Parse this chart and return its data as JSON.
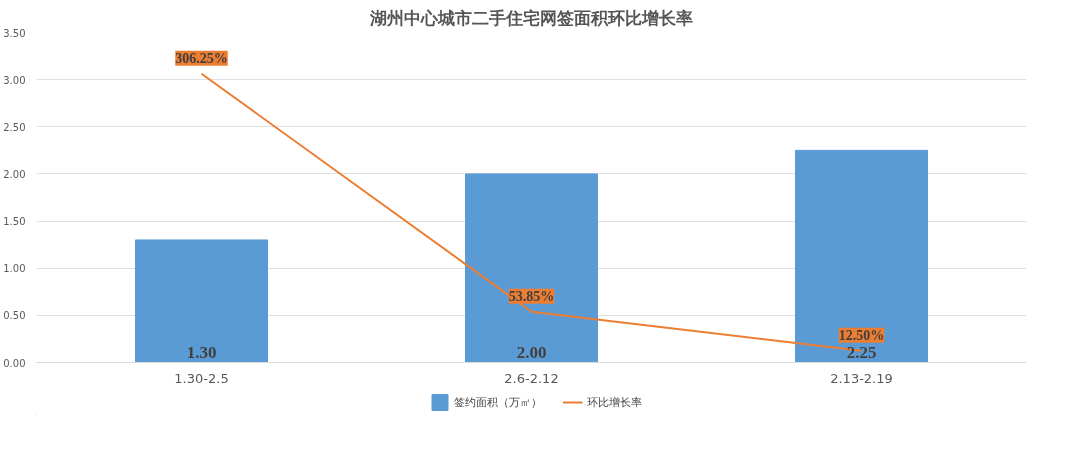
{
  "chart_data": {
    "type": "bar",
    "title": "湖州中心城市二手住宅网签面积环比增长率",
    "categories": [
      "1.30-2.5",
      "2.6-2.12",
      "2.13-2.19"
    ],
    "series": [
      {
        "name": "签约面积（万㎡）",
        "color": "#5b9bd5",
        "values": [
          1.3,
          2.0,
          2.25
        ],
        "value_labels": [
          "1.30",
          "2.00",
          "2.25"
        ]
      },
      {
        "name": "环比增长率",
        "type": "line",
        "color": "#ed7d31",
        "values": [
          3.0625,
          0.5385,
          0.125
        ],
        "value_labels": [
          "306.25%",
          "53.85%",
          "12.50%"
        ]
      }
    ],
    "ylim": [
      0,
      3.5
    ],
    "yticks": [
      {
        "value": 0,
        "label": "0.00"
      },
      {
        "value": 0.5,
        "label": "0.50"
      },
      {
        "value": 1,
        "label": "1.00"
      },
      {
        "value": 1.5,
        "label": "1.50"
      },
      {
        "value": 2,
        "label": "2.00"
      },
      {
        "value": 2.5,
        "label": "2.50"
      },
      {
        "value": 3,
        "label": "3.00"
      },
      {
        "value": 3.5,
        "label": "3.50"
      }
    ],
    "grid": "y",
    "legend": "bottom",
    "marker": "none",
    "line_style": "solid"
  }
}
